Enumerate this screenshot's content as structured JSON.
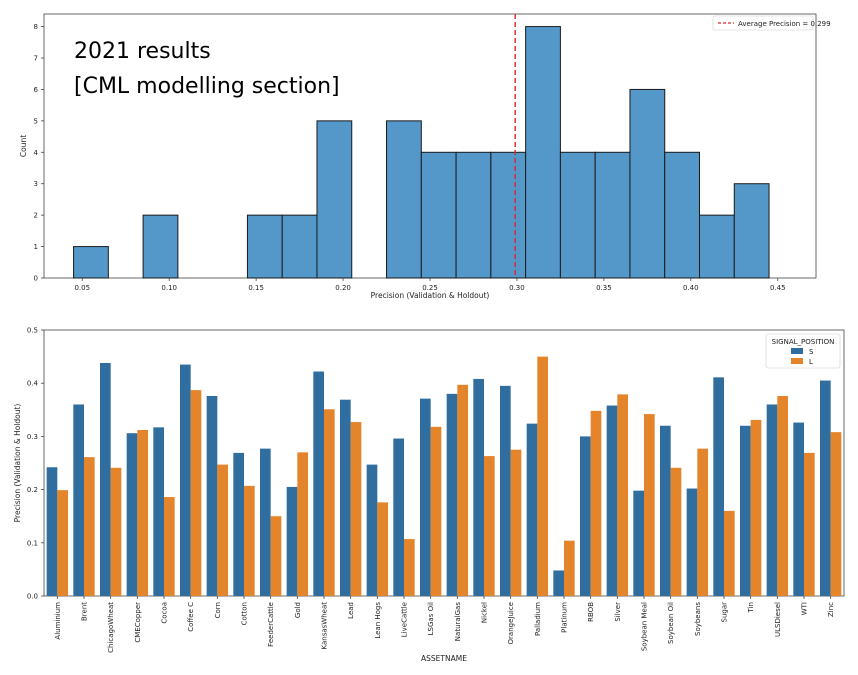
{
  "annotation": {
    "line1": "2021 results",
    "line2": "[CML modelling section]"
  },
  "colors": {
    "hist_fill": "#5497c9",
    "series_S": "#2f6e9f",
    "series_L": "#e5852b",
    "mean_line": "#e0262b"
  },
  "chart_data": [
    {
      "type": "bar",
      "subtype": "histogram",
      "title": "",
      "xlabel": "Precision (Validation & Holdout)",
      "ylabel": "Count",
      "xlim": [
        0.028,
        0.472
      ],
      "ylim": [
        0,
        8.4
      ],
      "xticks": [
        "0.05",
        "0.10",
        "0.15",
        "0.20",
        "0.25",
        "0.30",
        "0.35",
        "0.40",
        "0.45"
      ],
      "xtick_values": [
        0.05,
        0.1,
        0.15,
        0.2,
        0.25,
        0.3,
        0.35,
        0.4,
        0.45
      ],
      "yticks": [
        "0",
        "1",
        "2",
        "3",
        "4",
        "5",
        "6",
        "7",
        "8"
      ],
      "bin_width": 0.02,
      "bins": [
        {
          "start": 0.045,
          "count": 1
        },
        {
          "start": 0.065,
          "count": 0
        },
        {
          "start": 0.085,
          "count": 2
        },
        {
          "start": 0.105,
          "count": 0
        },
        {
          "start": 0.125,
          "count": 0
        },
        {
          "start": 0.145,
          "count": 2
        },
        {
          "start": 0.165,
          "count": 2
        },
        {
          "start": 0.185,
          "count": 5
        },
        {
          "start": 0.205,
          "count": 0
        },
        {
          "start": 0.225,
          "count": 5
        },
        {
          "start": 0.245,
          "count": 4
        },
        {
          "start": 0.265,
          "count": 4
        },
        {
          "start": 0.285,
          "count": 4
        },
        {
          "start": 0.305,
          "count": 8
        },
        {
          "start": 0.325,
          "count": 4
        },
        {
          "start": 0.345,
          "count": 4
        },
        {
          "start": 0.365,
          "count": 6
        },
        {
          "start": 0.385,
          "count": 4
        },
        {
          "start": 0.405,
          "count": 2
        },
        {
          "start": 0.425,
          "count": 3
        }
      ],
      "vline": {
        "value": 0.299,
        "label": "Average Precision = 0.299"
      },
      "legend_position": "top-right",
      "grid": false
    },
    {
      "type": "bar",
      "subtype": "grouped",
      "title": "",
      "xlabel": "ASSETNAME",
      "ylabel": "Precision (Validation & Holdout)",
      "ylim": [
        0,
        0.5
      ],
      "yticks": [
        "0.0",
        "0.1",
        "0.2",
        "0.3",
        "0.4",
        "0.5"
      ],
      "legend_title": "SIGNAL_POSITION",
      "legend_position": "top-right",
      "grid": false,
      "categories": [
        "Aluminium",
        "Brent",
        "ChicagoWheat",
        "CMECopper",
        "Cocoa",
        "Coffee C",
        "Corn",
        "Cotton",
        "FeederCattle",
        "Gold",
        "KansasWheat",
        "Lead",
        "Lean Hogs",
        "LiveCattle",
        "LSGas Oil",
        "NaturalGas",
        "Nickel",
        "OrangeJuice",
        "Palladium",
        "Platinum",
        "RBOB",
        "Silver",
        "Soybean Meal",
        "Soybean Oil",
        "Soybeans",
        "Sugar",
        "Tin",
        "ULSDiesel",
        "WTI",
        "Zinc"
      ],
      "series": [
        {
          "name": "S",
          "values": [
            0.242,
            0.36,
            0.438,
            0.306,
            0.317,
            0.435,
            0.376,
            0.269,
            0.277,
            0.205,
            0.422,
            0.369,
            0.247,
            0.296,
            0.371,
            0.38,
            0.408,
            0.395,
            0.324,
            0.048,
            0.3,
            0.358,
            0.198,
            0.32,
            0.202,
            0.411,
            0.32,
            0.36,
            0.326,
            0.405
          ]
        },
        {
          "name": "L",
          "values": [
            0.199,
            0.261,
            0.241,
            0.312,
            0.186,
            0.387,
            0.247,
            0.207,
            0.15,
            0.27,
            0.351,
            0.327,
            0.176,
            0.107,
            0.318,
            0.397,
            0.263,
            0.275,
            0.45,
            0.104,
            0.348,
            0.379,
            0.342,
            0.241,
            0.277,
            0.16,
            0.331,
            0.376,
            0.269,
            0.308
          ]
        }
      ]
    }
  ]
}
